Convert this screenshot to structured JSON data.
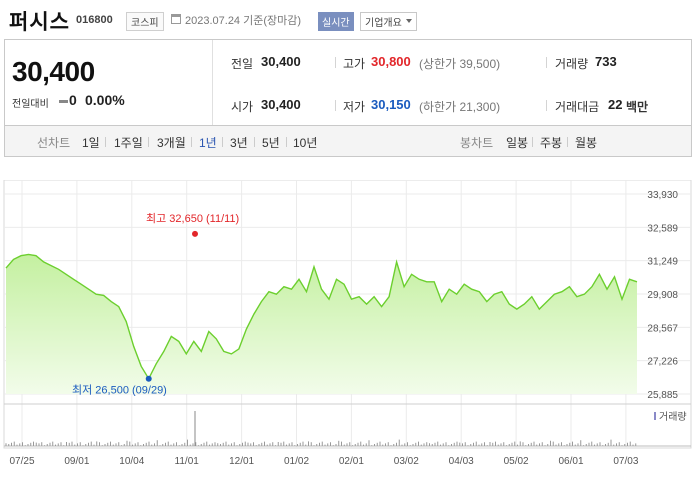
{
  "header": {
    "name": "퍼시스",
    "code": "016800",
    "market": "코스피",
    "date": "2023.07.24",
    "date_note": "기준(장마감)",
    "realtime_label": "실시간",
    "company_label": "기업개요"
  },
  "quote": {
    "price": "30,400",
    "change_label": "전일대비",
    "change_value": "0",
    "change_pct": "0.00%",
    "prev_label": "전일",
    "prev_value": "30,400",
    "high_label": "고가",
    "high_value": "30,800",
    "upper_limit": "(상한가 39,500)",
    "volume_label": "거래량",
    "volume_value": "733",
    "open_label": "시가",
    "open_value": "30,400",
    "low_label": "저가",
    "low_value": "30,150",
    "lower_limit": "(하한가 21,300)",
    "amount_label": "거래대금",
    "amount_value": "22",
    "amount_unit": "백만"
  },
  "tabs": {
    "line_label": "선차트",
    "periods": [
      "1일",
      "1주일",
      "3개월",
      "1년",
      "3년",
      "5년",
      "10년"
    ],
    "active_period": "1년",
    "candle_label": "봉차트",
    "candles": [
      "일봉",
      "주봉",
      "월봉"
    ]
  },
  "colors": {
    "line": "#6ccf2e",
    "fill_top": "#c4f0a0",
    "fill_bottom": "#f2fcea",
    "high_marker": "#e2262a",
    "low_marker": "#1a5bbf"
  },
  "chart_data": {
    "type": "area",
    "y_ticks": [
      "33,930",
      "32,589",
      "31,249",
      "29,908",
      "28,567",
      "27,226",
      "25,885"
    ],
    "ylim": [
      25885,
      33930
    ],
    "x_ticks": [
      "07/25",
      "09/01",
      "10/04",
      "11/01",
      "12/01",
      "01/02",
      "02/01",
      "03/02",
      "04/03",
      "05/02",
      "06/01",
      "07/03"
    ],
    "series": [
      {
        "values": [
          30950,
          31300,
          31450,
          31500,
          31450,
          31200,
          31050,
          30900,
          30700,
          30500,
          30300,
          30100,
          29900,
          29850,
          29600,
          29400,
          28800,
          27800,
          27000,
          26500,
          27100,
          27600,
          28200,
          28000,
          27500,
          28000,
          27600,
          28400,
          28100,
          27600,
          27500,
          27700,
          28500,
          29100,
          29600,
          30000,
          29900,
          30200,
          30100,
          30500,
          30000,
          31000,
          30100,
          29700,
          30500,
          30300,
          29700,
          29800,
          29500,
          29800,
          29400,
          29800,
          31200,
          30200,
          30700,
          30500,
          30400,
          30400,
          29600,
          30100,
          29900,
          30300,
          30100,
          30000,
          29600,
          29900,
          30000,
          29500,
          29300,
          29500,
          29800,
          29300,
          29600,
          29900,
          30000,
          30200,
          29800,
          29900,
          30200,
          30700,
          30100,
          30600,
          29700,
          30500,
          30400
        ]
      }
    ],
    "max_annotation": "최고 32,650 (11/11)",
    "min_annotation": "최저 26,500 (09/29)",
    "volume_label": "거래량"
  }
}
